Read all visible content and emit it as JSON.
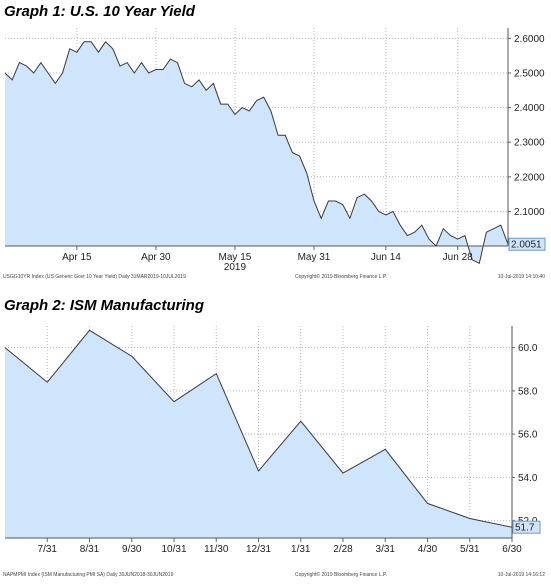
{
  "graph1": {
    "title": "Graph 1: U.S. 10 Year Yield",
    "footer_left": "USGG10YR Index (US Generic Govt 10 Year Yield)  Daily  31MAR2019-10JUL2019",
    "footer_center": "Copyright© 2019 Bloomberg Finance L.P.",
    "footer_right": "10-Jul-2019 14:10:40",
    "last_value_label": "2.0051",
    "year_label": "2019",
    "colors": {
      "line": "#3a3a3a",
      "fill": "#cfe5fb",
      "badge": "#cfe5fb",
      "grid": "#b8b8b8"
    }
  },
  "graph2": {
    "title": "Graph 2: ISM Manufacturing",
    "footer_left": "NAPMPMI Index (ISM Manufacturing PMI SA)  Daily  30JUN2018-30JUN2019",
    "footer_center": "Copyright© 2019 Bloomberg Finance L.P.",
    "footer_right": "10-Jul-2019 14:16:12",
    "last_value_label": "51.7",
    "colors": {
      "line": "#3a3a3a",
      "fill": "#cfe5fb",
      "badge": "#cfe5fb",
      "grid": "#b8b8b8"
    }
  },
  "chart_data": [
    {
      "type": "area",
      "title": "Graph 1: U.S. 10 Year Yield",
      "xlabel": "2019",
      "ylabel": "",
      "x_ticks": [
        "Apr 15",
        "Apr 30",
        "May 15",
        "May 31",
        "Jun 14",
        "Jun 28"
      ],
      "y_ticks": [
        "2.6000",
        "2.5000",
        "2.4000",
        "2.3000",
        "2.2000",
        "2.1000"
      ],
      "ylim": [
        2.0,
        2.63
      ],
      "grid": true,
      "series": [
        {
          "x": [
            "Apr 1",
            "Apr 2",
            "Apr 3",
            "Apr 4",
            "Apr 5",
            "Apr 8",
            "Apr 9",
            "Apr 10",
            "Apr 11",
            "Apr 12",
            "Apr 15",
            "Apr 16",
            "Apr 17",
            "Apr 18",
            "Apr 19",
            "Apr 22",
            "Apr 23",
            "Apr 24",
            "Apr 25",
            "Apr 26",
            "Apr 29",
            "Apr 30",
            "May 1",
            "May 2",
            "May 3",
            "May 6",
            "May 7",
            "May 8",
            "May 9",
            "May 10",
            "May 13",
            "May 14",
            "May 15",
            "May 16",
            "May 17",
            "May 20",
            "May 21",
            "May 22",
            "May 23",
            "May 24",
            "May 28",
            "May 29",
            "May 30",
            "May 31",
            "Jun 3",
            "Jun 4",
            "Jun 5",
            "Jun 6",
            "Jun 7",
            "Jun 10",
            "Jun 11",
            "Jun 12",
            "Jun 13",
            "Jun 14",
            "Jun 17",
            "Jun 18",
            "Jun 19",
            "Jun 20",
            "Jun 21",
            "Jun 24",
            "Jun 25",
            "Jun 26",
            "Jun 27",
            "Jun 28",
            "Jul 1",
            "Jul 2",
            "Jul 3",
            "Jul 5",
            "Jul 8",
            "Jul 9",
            "Jul 10"
          ],
          "values": [
            2.5,
            2.48,
            2.53,
            2.52,
            2.5,
            2.53,
            2.5,
            2.47,
            2.5,
            2.57,
            2.56,
            2.59,
            2.59,
            2.56,
            2.59,
            2.57,
            2.52,
            2.53,
            2.5,
            2.53,
            2.5,
            2.51,
            2.51,
            2.54,
            2.53,
            2.47,
            2.46,
            2.48,
            2.45,
            2.47,
            2.41,
            2.41,
            2.38,
            2.4,
            2.39,
            2.42,
            2.43,
            2.39,
            2.32,
            2.32,
            2.27,
            2.26,
            2.21,
            2.13,
            2.08,
            2.13,
            2.13,
            2.12,
            2.08,
            2.14,
            2.15,
            2.13,
            2.1,
            2.09,
            2.1,
            2.06,
            2.03,
            2.04,
            2.06,
            2.02,
            2.0,
            2.05,
            2.03,
            2.02,
            2.03,
            1.96,
            1.95,
            2.04,
            2.05,
            2.06,
            2.0051
          ]
        }
      ]
    },
    {
      "type": "area",
      "title": "Graph 2: ISM Manufacturing",
      "xlabel": "",
      "ylabel": "",
      "x_ticks": [
        "7/31",
        "8/31",
        "9/30",
        "10/31",
        "11/30",
        "12/31",
        "1/31",
        "2/28",
        "3/31",
        "4/30",
        "5/31",
        "6/30"
      ],
      "y_ticks": [
        "60.0",
        "58.0",
        "56.0",
        "54.0",
        "52.0"
      ],
      "ylim": [
        51.2,
        61.0
      ],
      "grid": true,
      "series": [
        {
          "x": [
            "6/30",
            "7/31",
            "8/31",
            "9/30",
            "10/31",
            "11/30",
            "12/31",
            "1/31",
            "2/28",
            "3/31",
            "4/30",
            "5/31",
            "6/30"
          ],
          "values": [
            60.0,
            58.4,
            60.8,
            59.6,
            57.5,
            58.8,
            54.3,
            56.6,
            54.2,
            55.3,
            52.8,
            52.1,
            51.7
          ]
        }
      ]
    }
  ]
}
